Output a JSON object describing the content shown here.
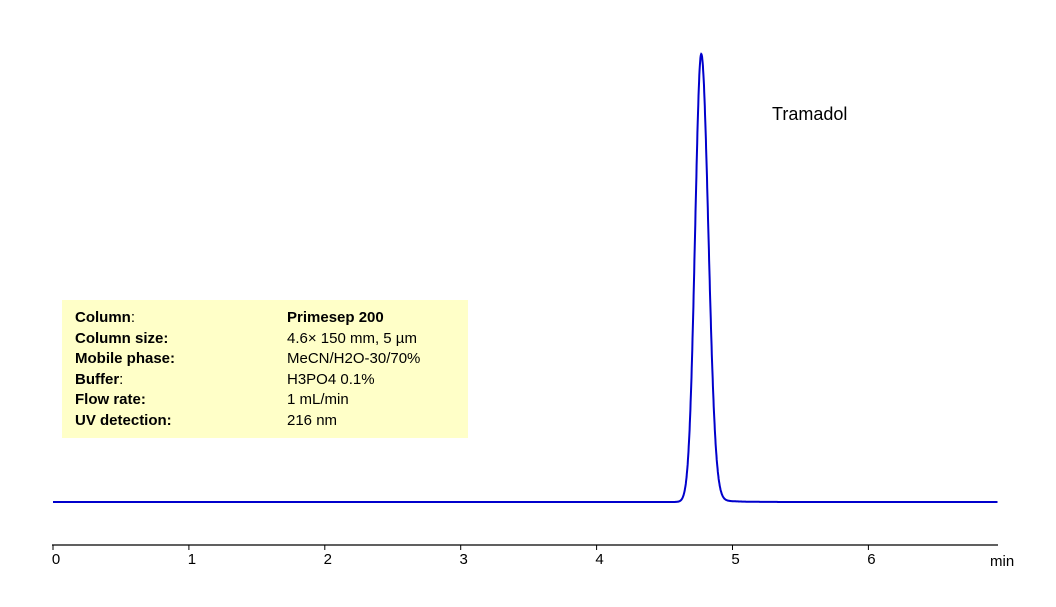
{
  "chart_data": {
    "type": "line",
    "title": "",
    "xlabel": "min",
    "ylabel": "",
    "xlim": [
      0,
      6.95
    ],
    "x_ticks": [
      "0",
      "1",
      "2",
      "3",
      "4",
      "5",
      "6"
    ],
    "grid": false,
    "legend": null,
    "series": [
      {
        "name": "UV 216 nm",
        "color": "#0000cc",
        "peaks": [
          {
            "compound": "Tramadol",
            "retention_time_min": 4.77,
            "relative_height": 1.0,
            "width_min": 0.12
          }
        ]
      }
    ],
    "annotations": [
      {
        "text": "Tramadol",
        "near_x": 4.77
      }
    ]
  },
  "info_box": {
    "rows": [
      {
        "label": "Column",
        "label_suffix": ":",
        "value": "Primesep 200",
        "value_bold": true
      },
      {
        "label": "Column size:",
        "label_suffix": "",
        "value": "4.6× 150 mm, 5 µm",
        "value_bold": false
      },
      {
        "label": "Mobile phase:",
        "label_suffix": "",
        "value": "MeCN/H2O-30/70%",
        "value_bold": false
      },
      {
        "label": "Buffer",
        "label_suffix": ":",
        "value": "H3PO4 0.1%",
        "value_bold": false
      },
      {
        "label": "Flow rate:",
        "label_suffix": "",
        "value": "1 mL/min",
        "value_bold": false
      },
      {
        "label": "UV detection:",
        "label_suffix": "",
        "value": "216 nm",
        "value_bold": false
      }
    ]
  },
  "peak_label": "Tramadol",
  "axis": {
    "unit": "min",
    "ticks": [
      "0",
      "1",
      "2",
      "3",
      "4",
      "5",
      "6"
    ]
  },
  "colors": {
    "trace": "#0000cc",
    "info_bg": "#ffffc8",
    "axis": "#000000"
  }
}
